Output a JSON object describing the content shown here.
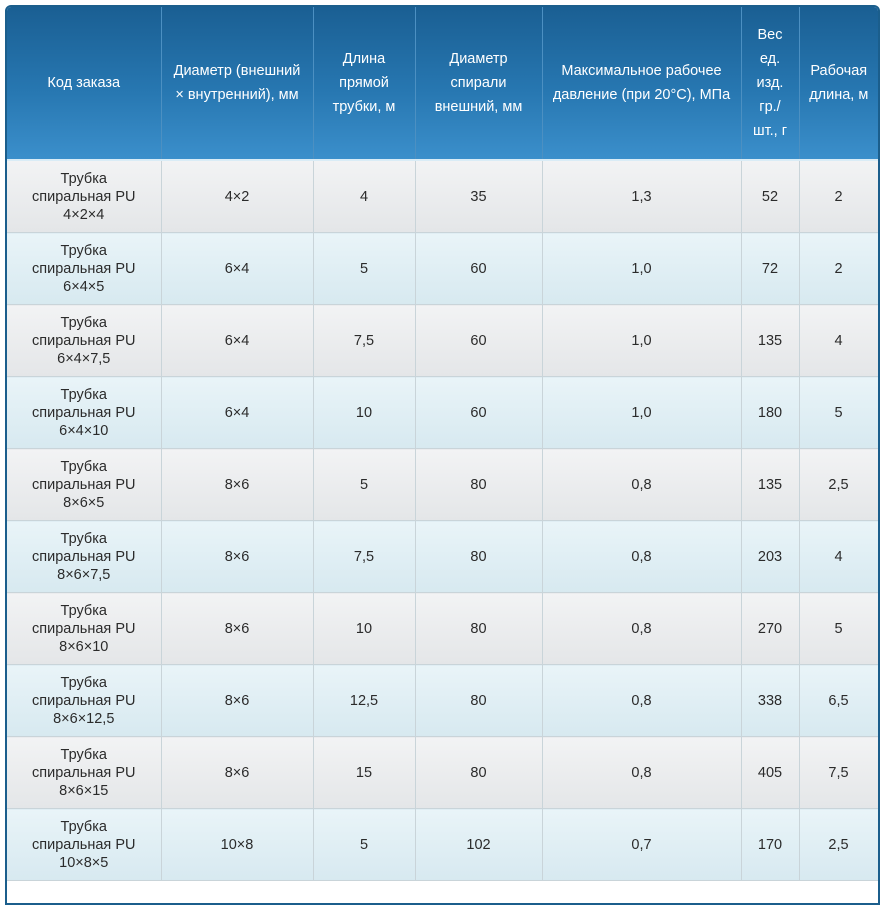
{
  "headers": [
    "Код заказа",
    "Диаметр (внешний × внутренний), мм",
    "Длина прямой трубки, м",
    "Диаметр спирали внешний, мм",
    "Максимальное рабочее давление (при 20°С), МПа",
    "Вес ед. изд. гр./ шт., г",
    "Рабочая длина, м"
  ],
  "rows": [
    {
      "code_l1": "Трубка",
      "code_l2": "спиральная PU",
      "code_l3": "4×2×4",
      "diameter": "4×2",
      "length": "4",
      "spiral": "35",
      "pressure": "1,3",
      "weight": "52",
      "work_len": "2"
    },
    {
      "code_l1": "Трубка",
      "code_l2": "спиральная PU",
      "code_l3": "6×4×5",
      "diameter": "6×4",
      "length": "5",
      "spiral": "60",
      "pressure": "1,0",
      "weight": "72",
      "work_len": "2"
    },
    {
      "code_l1": "Трубка",
      "code_l2": "спиральная PU",
      "code_l3": "6×4×7,5",
      "diameter": "6×4",
      "length": "7,5",
      "spiral": "60",
      "pressure": "1,0",
      "weight": "135",
      "work_len": "4"
    },
    {
      "code_l1": "Трубка",
      "code_l2": "спиральная PU",
      "code_l3": "6×4×10",
      "diameter": "6×4",
      "length": "10",
      "spiral": "60",
      "pressure": "1,0",
      "weight": "180",
      "work_len": "5"
    },
    {
      "code_l1": "Трубка",
      "code_l2": "спиральная PU",
      "code_l3": "8×6×5",
      "diameter": "8×6",
      "length": "5",
      "spiral": "80",
      "pressure": "0,8",
      "weight": "135",
      "work_len": "2,5"
    },
    {
      "code_l1": "Трубка",
      "code_l2": "спиральная PU",
      "code_l3": "8×6×7,5",
      "diameter": "8×6",
      "length": "7,5",
      "spiral": "80",
      "pressure": "0,8",
      "weight": "203",
      "work_len": "4"
    },
    {
      "code_l1": "Трубка",
      "code_l2": "спиральная PU",
      "code_l3": "8×6×10",
      "diameter": "8×6",
      "length": "10",
      "spiral": "80",
      "pressure": "0,8",
      "weight": "270",
      "work_len": "5"
    },
    {
      "code_l1": "Трубка",
      "code_l2": "спиральная PU",
      "code_l3": "8×6×12,5",
      "diameter": "8×6",
      "length": "12,5",
      "spiral": "80",
      "pressure": "0,8",
      "weight": "338",
      "work_len": "6,5"
    },
    {
      "code_l1": "Трубка",
      "code_l2": "спиральная PU",
      "code_l3": "8×6×15",
      "diameter": "8×6",
      "length": "15",
      "spiral": "80",
      "pressure": "0,8",
      "weight": "405",
      "work_len": "7,5"
    },
    {
      "code_l1": "Трубка",
      "code_l2": "спиральная PU",
      "code_l3": "10×8×5",
      "diameter": "10×8",
      "length": "5",
      "spiral": "102",
      "pressure": "0,7",
      "weight": "170",
      "work_len": "2,5"
    }
  ],
  "colors": {
    "header_top": "#1a5f93",
    "header_bottom": "#3b8fcb",
    "row_odd": "#ebecee",
    "row_even": "#e0eff5"
  }
}
